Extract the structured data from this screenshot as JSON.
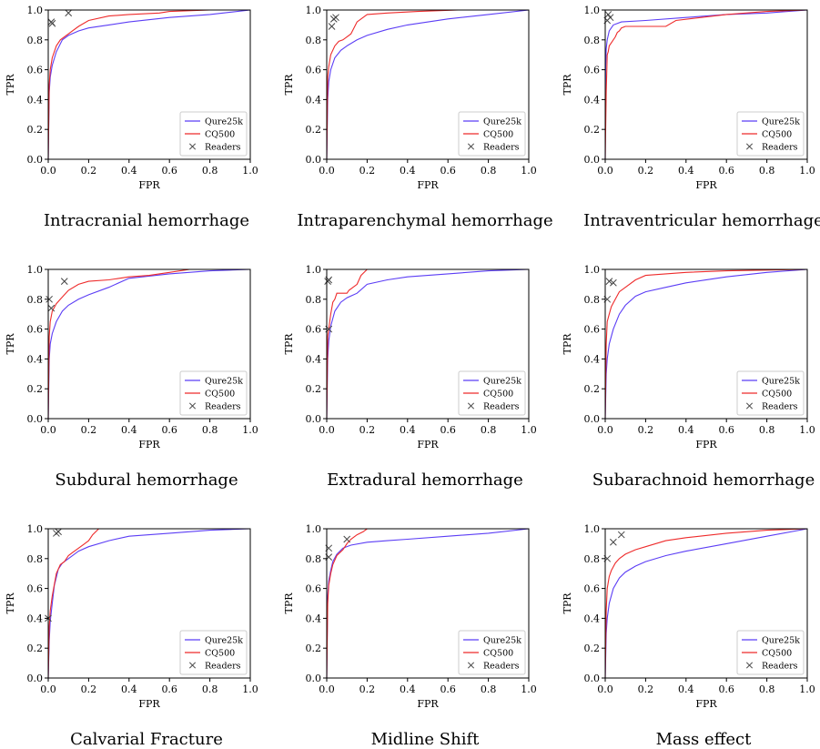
{
  "legend_labels": [
    "Qure25k",
    "CQ500",
    "Readers"
  ],
  "colors": {
    "qure25k": "#5b3df5",
    "cq500": "#ee2b2b",
    "readers": "#444444"
  },
  "chart_data": [
    {
      "type": "line",
      "title": "Intracranial hemorrhage",
      "xlabel": "FPR",
      "ylabel": "TPR",
      "xlim": [
        0,
        1
      ],
      "ylim": [
        0,
        1
      ],
      "xticks": [
        "0.0",
        "0.2",
        "0.4",
        "0.6",
        "0.8",
        "1.0"
      ],
      "yticks": [
        "0.0",
        "0.2",
        "0.4",
        "0.6",
        "0.8",
        "1.0"
      ],
      "legend": "bottom-right",
      "grid": false,
      "series": [
        {
          "name": "Qure25k",
          "x": [
            0,
            0.005,
            0.01,
            0.02,
            0.04,
            0.07,
            0.1,
            0.15,
            0.2,
            0.3,
            0.4,
            0.6,
            0.8,
            1.0
          ],
          "y": [
            0,
            0.45,
            0.55,
            0.63,
            0.72,
            0.8,
            0.83,
            0.86,
            0.88,
            0.9,
            0.92,
            0.95,
            0.97,
            1.0
          ]
        },
        {
          "name": "CQ500",
          "x": [
            0,
            0.005,
            0.01,
            0.02,
            0.04,
            0.06,
            0.1,
            0.15,
            0.2,
            0.3,
            0.4,
            0.55,
            0.6,
            0.8,
            1.0
          ],
          "y": [
            0,
            0.5,
            0.6,
            0.68,
            0.76,
            0.8,
            0.84,
            0.89,
            0.93,
            0.96,
            0.97,
            0.98,
            0.99,
            1.0,
            1.0
          ]
        },
        {
          "name": "Readers",
          "x": [
            0.015,
            0.02,
            0.1
          ],
          "y": [
            0.92,
            0.91,
            0.98
          ]
        }
      ]
    },
    {
      "type": "line",
      "title": "Intraparenchymal hemorrhage",
      "xlabel": "FPR",
      "ylabel": "TPR",
      "xlim": [
        0,
        1
      ],
      "ylim": [
        0,
        1
      ],
      "xticks": [
        "0.0",
        "0.2",
        "0.4",
        "0.6",
        "0.8",
        "1.0"
      ],
      "yticks": [
        "0.0",
        "0.2",
        "0.4",
        "0.6",
        "0.8",
        "1.0"
      ],
      "legend": "bottom-right",
      "grid": false,
      "series": [
        {
          "name": "Qure25k",
          "x": [
            0,
            0.005,
            0.01,
            0.02,
            0.04,
            0.07,
            0.1,
            0.15,
            0.2,
            0.3,
            0.4,
            0.6,
            0.8,
            1.0
          ],
          "y": [
            0,
            0.4,
            0.52,
            0.6,
            0.68,
            0.73,
            0.76,
            0.8,
            0.83,
            0.87,
            0.9,
            0.94,
            0.97,
            1.0
          ]
        },
        {
          "name": "CQ500",
          "x": [
            0,
            0.005,
            0.01,
            0.02,
            0.04,
            0.06,
            0.08,
            0.12,
            0.15,
            0.2,
            0.3,
            0.45,
            0.65,
            1.0
          ],
          "y": [
            0,
            0.55,
            0.62,
            0.7,
            0.76,
            0.79,
            0.8,
            0.84,
            0.92,
            0.97,
            0.98,
            0.99,
            1.0,
            1.0
          ]
        },
        {
          "name": "Readers",
          "x": [
            0.025,
            0.035,
            0.045
          ],
          "y": [
            0.89,
            0.94,
            0.95
          ]
        }
      ]
    },
    {
      "type": "line",
      "title": "Intraventricular hemorrhage",
      "xlabel": "FPR",
      "ylabel": "TPR",
      "xlim": [
        0,
        1
      ],
      "ylim": [
        0,
        1
      ],
      "xticks": [
        "0.0",
        "0.2",
        "0.4",
        "0.6",
        "0.8",
        "1.0"
      ],
      "yticks": [
        "0.0",
        "0.2",
        "0.4",
        "0.6",
        "0.8",
        "1.0"
      ],
      "legend": "bottom-right",
      "grid": false,
      "series": [
        {
          "name": "Qure25k",
          "x": [
            0,
            0.002,
            0.005,
            0.01,
            0.02,
            0.04,
            0.08,
            0.2,
            0.4,
            0.6,
            0.8,
            1.0
          ],
          "y": [
            0,
            0.6,
            0.74,
            0.8,
            0.86,
            0.9,
            0.92,
            0.93,
            0.95,
            0.97,
            0.98,
            1.0
          ]
        },
        {
          "name": "CQ500",
          "x": [
            0,
            0.005,
            0.01,
            0.015,
            0.02,
            0.03,
            0.05,
            0.06,
            0.07,
            0.08,
            0.1,
            0.3,
            0.35,
            0.6,
            0.8,
            1.0
          ],
          "y": [
            0,
            0.45,
            0.7,
            0.72,
            0.76,
            0.78,
            0.82,
            0.85,
            0.86,
            0.88,
            0.89,
            0.89,
            0.93,
            0.97,
            0.99,
            1.0
          ]
        },
        {
          "name": "Readers",
          "x": [
            0.01,
            0.015,
            0.025
          ],
          "y": [
            0.93,
            0.97,
            0.95
          ]
        }
      ]
    },
    {
      "type": "line",
      "title": "Subdural hemorrhage",
      "xlabel": "FPR",
      "ylabel": "TPR",
      "xlim": [
        0,
        1
      ],
      "ylim": [
        0,
        1
      ],
      "xticks": [
        "0.0",
        "0.2",
        "0.4",
        "0.6",
        "0.8",
        "1.0"
      ],
      "yticks": [
        "0.0",
        "0.2",
        "0.4",
        "0.6",
        "0.8",
        "1.0"
      ],
      "legend": "bottom-right",
      "grid": false,
      "series": [
        {
          "name": "Qure25k",
          "x": [
            0,
            0.005,
            0.01,
            0.02,
            0.04,
            0.07,
            0.1,
            0.15,
            0.2,
            0.3,
            0.4,
            0.6,
            0.8,
            1.0
          ],
          "y": [
            0,
            0.4,
            0.5,
            0.57,
            0.65,
            0.72,
            0.76,
            0.8,
            0.83,
            0.88,
            0.94,
            0.97,
            0.99,
            1.0
          ]
        },
        {
          "name": "CQ500",
          "x": [
            0,
            0.005,
            0.01,
            0.02,
            0.04,
            0.06,
            0.1,
            0.15,
            0.2,
            0.3,
            0.4,
            0.5,
            0.6,
            0.7,
            1.0
          ],
          "y": [
            0,
            0.55,
            0.65,
            0.72,
            0.77,
            0.8,
            0.86,
            0.9,
            0.92,
            0.93,
            0.95,
            0.96,
            0.98,
            1.0,
            1.0
          ]
        },
        {
          "name": "Readers",
          "x": [
            0.005,
            0.015,
            0.08
          ],
          "y": [
            0.8,
            0.74,
            0.92
          ]
        }
      ]
    },
    {
      "type": "line",
      "title": "Extradural hemorrhage",
      "xlabel": "FPR",
      "ylabel": "TPR",
      "xlim": [
        0,
        1
      ],
      "ylim": [
        0,
        1
      ],
      "xticks": [
        "0.0",
        "0.2",
        "0.4",
        "0.6",
        "0.8",
        "1.0"
      ],
      "yticks": [
        "0.0",
        "0.2",
        "0.4",
        "0.6",
        "0.8",
        "1.0"
      ],
      "legend": "bottom-right",
      "grid": false,
      "series": [
        {
          "name": "Qure25k",
          "x": [
            0,
            0.005,
            0.01,
            0.02,
            0.04,
            0.07,
            0.1,
            0.15,
            0.2,
            0.3,
            0.4,
            0.6,
            0.8,
            1.0
          ],
          "y": [
            0,
            0.4,
            0.52,
            0.62,
            0.72,
            0.78,
            0.81,
            0.84,
            0.9,
            0.93,
            0.95,
            0.97,
            0.99,
            1.0
          ]
        },
        {
          "name": "CQ500",
          "x": [
            0,
            0.005,
            0.01,
            0.02,
            0.03,
            0.04,
            0.05,
            0.1,
            0.11,
            0.15,
            0.17,
            0.2,
            0.4,
            1.0
          ],
          "y": [
            0,
            0.55,
            0.6,
            0.7,
            0.78,
            0.8,
            0.84,
            0.84,
            0.86,
            0.9,
            0.96,
            1.0,
            1.0,
            1.0
          ]
        },
        {
          "name": "Readers",
          "x": [
            0.005,
            0.01,
            0.01
          ],
          "y": [
            0.92,
            0.93,
            0.6
          ]
        }
      ]
    },
    {
      "type": "line",
      "title": "Subarachnoid hemorrhage",
      "xlabel": "FPR",
      "ylabel": "TPR",
      "xlim": [
        0,
        1
      ],
      "ylim": [
        0,
        1
      ],
      "xticks": [
        "0.0",
        "0.2",
        "0.4",
        "0.6",
        "0.8",
        "1.0"
      ],
      "yticks": [
        "0.0",
        "0.2",
        "0.4",
        "0.6",
        "0.8",
        "1.0"
      ],
      "legend": "bottom-right",
      "grid": false,
      "series": [
        {
          "name": "Qure25k",
          "x": [
            0,
            0.005,
            0.01,
            0.02,
            0.04,
            0.07,
            0.1,
            0.15,
            0.2,
            0.3,
            0.4,
            0.6,
            0.8,
            1.0
          ],
          "y": [
            0,
            0.3,
            0.4,
            0.5,
            0.6,
            0.7,
            0.76,
            0.82,
            0.85,
            0.88,
            0.91,
            0.95,
            0.98,
            1.0
          ]
        },
        {
          "name": "CQ500",
          "x": [
            0,
            0.005,
            0.01,
            0.02,
            0.03,
            0.05,
            0.07,
            0.1,
            0.15,
            0.2,
            0.3,
            0.4,
            0.6,
            1.0
          ],
          "y": [
            0,
            0.5,
            0.65,
            0.7,
            0.75,
            0.8,
            0.85,
            0.88,
            0.93,
            0.96,
            0.97,
            0.98,
            0.99,
            1.0
          ]
        },
        {
          "name": "Readers",
          "x": [
            0.01,
            0.02,
            0.04
          ],
          "y": [
            0.8,
            0.92,
            0.91
          ]
        }
      ]
    },
    {
      "type": "line",
      "title": "Calvarial Fracture",
      "xlabel": "FPR",
      "ylabel": "TPR",
      "xlim": [
        0,
        1
      ],
      "ylim": [
        0,
        1
      ],
      "xticks": [
        "0.0",
        "0.2",
        "0.4",
        "0.6",
        "0.8",
        "1.0"
      ],
      "yticks": [
        "0.0",
        "0.2",
        "0.4",
        "0.6",
        "0.8",
        "1.0"
      ],
      "legend": "bottom-right",
      "grid": false,
      "series": [
        {
          "name": "Qure25k",
          "x": [
            0,
            0.005,
            0.01,
            0.02,
            0.03,
            0.05,
            0.07,
            0.1,
            0.15,
            0.2,
            0.3,
            0.4,
            0.6,
            0.8,
            1.0
          ],
          "y": [
            0,
            0.25,
            0.38,
            0.5,
            0.62,
            0.73,
            0.77,
            0.8,
            0.85,
            0.88,
            0.92,
            0.95,
            0.97,
            0.99,
            1.0
          ]
        },
        {
          "name": "CQ500",
          "x": [
            0,
            0.005,
            0.01,
            0.02,
            0.04,
            0.06,
            0.08,
            0.1,
            0.12,
            0.15,
            0.18,
            0.2,
            0.22,
            0.25,
            0.4,
            1.0
          ],
          "y": [
            0,
            0.35,
            0.45,
            0.55,
            0.7,
            0.76,
            0.78,
            0.82,
            0.84,
            0.87,
            0.9,
            0.92,
            0.96,
            1.0,
            1.0,
            1.0
          ]
        },
        {
          "name": "Readers",
          "x": [
            0.0,
            0.04,
            0.05
          ],
          "y": [
            0.4,
            0.97,
            0.98
          ]
        }
      ]
    },
    {
      "type": "line",
      "title": "Midline Shift",
      "xlabel": "FPR",
      "ylabel": "TPR",
      "xlim": [
        0,
        1
      ],
      "ylim": [
        0,
        1
      ],
      "xticks": [
        "0.0",
        "0.2",
        "0.4",
        "0.6",
        "0.8",
        "1.0"
      ],
      "yticks": [
        "0.0",
        "0.2",
        "0.4",
        "0.6",
        "0.8",
        "1.0"
      ],
      "legend": "bottom-right",
      "grid": false,
      "series": [
        {
          "name": "Qure25k",
          "x": [
            0,
            0.005,
            0.01,
            0.02,
            0.03,
            0.05,
            0.08,
            0.12,
            0.2,
            0.3,
            0.4,
            0.6,
            0.8,
            1.0
          ],
          "y": [
            0,
            0.55,
            0.65,
            0.72,
            0.78,
            0.83,
            0.87,
            0.89,
            0.91,
            0.92,
            0.93,
            0.95,
            0.97,
            1.0
          ]
        },
        {
          "name": "CQ500",
          "x": [
            0,
            0.005,
            0.01,
            0.02,
            0.03,
            0.05,
            0.08,
            0.1,
            0.12,
            0.15,
            0.18,
            0.2,
            0.3,
            1.0
          ],
          "y": [
            0,
            0.5,
            0.62,
            0.7,
            0.76,
            0.82,
            0.86,
            0.9,
            0.93,
            0.96,
            0.98,
            1.0,
            1.0,
            1.0
          ]
        },
        {
          "name": "Readers",
          "x": [
            0.01,
            0.01,
            0.1
          ],
          "y": [
            0.87,
            0.81,
            0.93
          ]
        }
      ]
    },
    {
      "type": "line",
      "title": "Mass effect",
      "xlabel": "FPR",
      "ylabel": "TPR",
      "xlim": [
        0,
        1
      ],
      "ylim": [
        0,
        1
      ],
      "xticks": [
        "0.0",
        "0.2",
        "0.4",
        "0.6",
        "0.8",
        "1.0"
      ],
      "yticks": [
        "0.0",
        "0.2",
        "0.4",
        "0.6",
        "0.8",
        "1.0"
      ],
      "legend": "bottom-right",
      "grid": false,
      "series": [
        {
          "name": "Qure25k",
          "x": [
            0,
            0.005,
            0.01,
            0.02,
            0.04,
            0.07,
            0.1,
            0.15,
            0.2,
            0.3,
            0.4,
            0.6,
            0.8,
            1.0
          ],
          "y": [
            0,
            0.3,
            0.4,
            0.5,
            0.6,
            0.67,
            0.71,
            0.75,
            0.78,
            0.82,
            0.85,
            0.9,
            0.95,
            1.0
          ]
        },
        {
          "name": "CQ500",
          "x": [
            0,
            0.005,
            0.01,
            0.02,
            0.03,
            0.05,
            0.07,
            0.1,
            0.15,
            0.2,
            0.3,
            0.4,
            0.6,
            0.8,
            1.0
          ],
          "y": [
            0,
            0.45,
            0.6,
            0.68,
            0.72,
            0.77,
            0.8,
            0.83,
            0.86,
            0.88,
            0.92,
            0.94,
            0.97,
            0.99,
            1.0
          ]
        },
        {
          "name": "Readers",
          "x": [
            0.01,
            0.04,
            0.08
          ],
          "y": [
            0.8,
            0.91,
            0.96
          ]
        }
      ]
    }
  ]
}
